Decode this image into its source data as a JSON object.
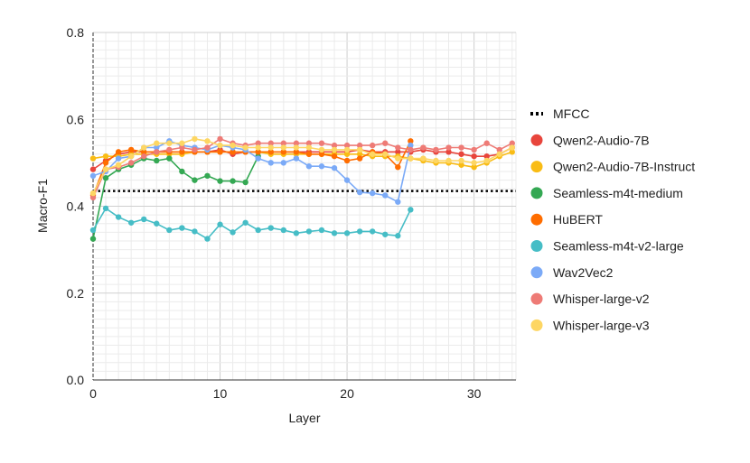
{
  "chart_data": {
    "type": "line",
    "title": "",
    "xlabel": "Layer",
    "ylabel": "Macro-F1",
    "xlim": [
      0,
      33.3
    ],
    "ylim": [
      0,
      0.8
    ],
    "x_ticks": [
      0,
      10,
      20,
      30
    ],
    "y_ticks": [
      0.0,
      0.2,
      0.4,
      0.6,
      0.8
    ],
    "x_tick_labels": [
      "0",
      "10",
      "20",
      "30"
    ],
    "y_tick_labels": [
      "0.0",
      "0.2",
      "0.4",
      "0.6",
      "0.8"
    ],
    "grid": true,
    "legend_position": "right",
    "baseline": {
      "name": "MFCC",
      "value": 0.435,
      "color": "#000000",
      "style": "dotted"
    },
    "series": [
      {
        "name": "Qwen2-Audio-7B",
        "color": "#E8453C",
        "x": [
          0,
          1,
          2,
          3,
          4,
          5,
          6,
          7,
          8,
          9,
          10,
          11,
          12,
          13,
          14,
          15,
          16,
          17,
          18,
          19,
          20,
          21,
          22,
          23,
          24,
          25,
          26,
          27,
          28,
          29,
          30,
          31,
          32,
          33
        ],
        "values": [
          0.485,
          0.505,
          0.52,
          0.525,
          0.525,
          0.525,
          0.525,
          0.525,
          0.525,
          0.525,
          0.53,
          0.52,
          0.525,
          0.525,
          0.525,
          0.525,
          0.525,
          0.525,
          0.525,
          0.525,
          0.525,
          0.53,
          0.525,
          0.525,
          0.525,
          0.525,
          0.53,
          0.525,
          0.525,
          0.52,
          0.515,
          0.515,
          0.52,
          0.535
        ]
      },
      {
        "name": "Qwen2-Audio-7B-Instruct",
        "color": "#F9BC15",
        "x": [
          0,
          1,
          2,
          3,
          4,
          5,
          6,
          7,
          8,
          9,
          10,
          11,
          12,
          13,
          14,
          15,
          16,
          17,
          18,
          19,
          20,
          21,
          22,
          23,
          24,
          25,
          26,
          27,
          28,
          29,
          30,
          31,
          32,
          33
        ],
        "values": [
          0.51,
          0.515,
          0.515,
          0.52,
          0.52,
          0.52,
          0.52,
          0.52,
          0.525,
          0.525,
          0.525,
          0.525,
          0.525,
          0.525,
          0.52,
          0.52,
          0.52,
          0.52,
          0.52,
          0.52,
          0.52,
          0.52,
          0.515,
          0.515,
          0.515,
          0.51,
          0.505,
          0.5,
          0.5,
          0.495,
          0.49,
          0.5,
          0.515,
          0.525
        ]
      },
      {
        "name": "Seamless-m4t-medium",
        "color": "#34A853",
        "x": [
          0,
          1,
          2,
          3,
          4,
          5,
          6,
          7,
          8,
          9,
          10,
          11,
          12,
          13
        ],
        "values": [
          0.325,
          0.465,
          0.485,
          0.495,
          0.51,
          0.505,
          0.51,
          0.48,
          0.46,
          0.47,
          0.458,
          0.458,
          0.455,
          0.515
        ]
      },
      {
        "name": "HuBERT",
        "color": "#FF6D00",
        "x": [
          0,
          1,
          2,
          3,
          4,
          5,
          6,
          7,
          8,
          9,
          10,
          11,
          12,
          13,
          14,
          15,
          16,
          17,
          18,
          19,
          20,
          21,
          22,
          23,
          24,
          25
        ],
        "values": [
          0.425,
          0.5,
          0.525,
          0.53,
          0.525,
          0.525,
          0.525,
          0.525,
          0.525,
          0.525,
          0.525,
          0.525,
          0.525,
          0.525,
          0.525,
          0.525,
          0.525,
          0.52,
          0.52,
          0.515,
          0.505,
          0.51,
          0.525,
          0.52,
          0.49,
          0.55
        ]
      },
      {
        "name": "Seamless-m4t-v2-large",
        "color": "#46BDC6",
        "x": [
          0,
          1,
          2,
          3,
          4,
          5,
          6,
          7,
          8,
          9,
          10,
          11,
          12,
          13,
          14,
          15,
          16,
          17,
          18,
          19,
          20,
          21,
          22,
          23,
          24,
          25
        ],
        "values": [
          0.345,
          0.395,
          0.375,
          0.362,
          0.37,
          0.36,
          0.345,
          0.35,
          0.342,
          0.325,
          0.358,
          0.34,
          0.362,
          0.345,
          0.35,
          0.345,
          0.338,
          0.342,
          0.345,
          0.338,
          0.338,
          0.342,
          0.342,
          0.335,
          0.332,
          0.392
        ]
      },
      {
        "name": "Wav2Vec2",
        "color": "#7BAAF7",
        "x": [
          0,
          1,
          2,
          3,
          4,
          5,
          6,
          7,
          8,
          9,
          10,
          11,
          12,
          13,
          14,
          15,
          16,
          17,
          18,
          19,
          20,
          21,
          22,
          23,
          24,
          25
        ],
        "values": [
          0.47,
          0.48,
          0.51,
          0.515,
          0.535,
          0.535,
          0.55,
          0.54,
          0.535,
          0.53,
          0.54,
          0.535,
          0.53,
          0.51,
          0.5,
          0.5,
          0.51,
          0.492,
          0.492,
          0.488,
          0.46,
          0.432,
          0.43,
          0.425,
          0.41,
          0.54
        ]
      },
      {
        "name": "Whisper-large-v2",
        "color": "#EE7B76",
        "x": [
          0,
          1,
          2,
          3,
          4,
          5,
          6,
          7,
          8,
          9,
          10,
          11,
          12,
          13,
          14,
          15,
          16,
          17,
          18,
          19,
          20,
          21,
          22,
          23,
          24,
          25,
          26,
          27,
          28,
          29,
          30,
          31,
          32,
          33
        ],
        "values": [
          0.42,
          0.485,
          0.49,
          0.5,
          0.515,
          0.525,
          0.53,
          0.535,
          0.53,
          0.535,
          0.555,
          0.545,
          0.54,
          0.545,
          0.545,
          0.545,
          0.545,
          0.545,
          0.545,
          0.54,
          0.54,
          0.54,
          0.54,
          0.545,
          0.535,
          0.53,
          0.535,
          0.53,
          0.535,
          0.535,
          0.53,
          0.545,
          0.53,
          0.545
        ]
      },
      {
        "name": "Whisper-large-v3",
        "color": "#FDD663",
        "x": [
          0,
          1,
          2,
          3,
          4,
          5,
          6,
          7,
          8,
          9,
          10,
          11,
          12,
          13,
          14,
          15,
          16,
          17,
          18,
          19,
          20,
          21,
          22,
          23,
          24,
          25,
          26,
          27,
          28,
          29,
          30,
          31,
          32,
          33
        ],
        "values": [
          0.43,
          0.485,
          0.495,
          0.515,
          0.535,
          0.545,
          0.545,
          0.545,
          0.555,
          0.55,
          0.54,
          0.54,
          0.535,
          0.535,
          0.535,
          0.535,
          0.535,
          0.535,
          0.53,
          0.53,
          0.53,
          0.53,
          0.52,
          0.52,
          0.51,
          0.51,
          0.51,
          0.505,
          0.505,
          0.505,
          0.5,
          0.505,
          0.52,
          0.535
        ]
      }
    ]
  }
}
